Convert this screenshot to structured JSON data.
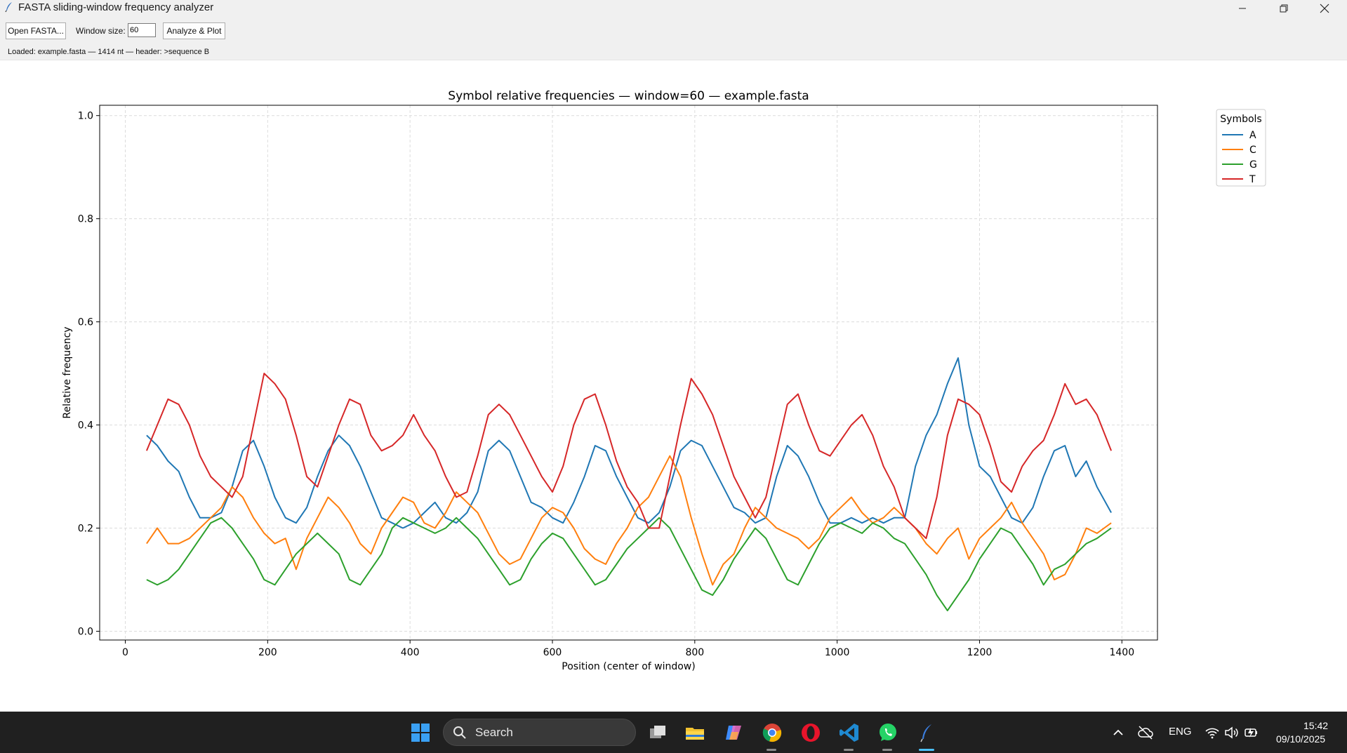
{
  "window": {
    "title": "FASTA sliding-window frequency analyzer"
  },
  "toolbar": {
    "open_label": "Open FASTA...",
    "window_size_label": "Window size:",
    "window_size_value": "60",
    "analyze_label": "Analyze & Plot",
    "status": "Loaded: example.fasta — 1414 nt — header: >sequence B"
  },
  "chart_data": {
    "type": "line",
    "title": "Symbol relative frequencies — window=60 — example.fasta",
    "xlabel": "Position (center of window)",
    "ylabel": "Relative frequency",
    "xlim": [
      -36,
      1450
    ],
    "ylim": [
      -0.017,
      1.02
    ],
    "xticks": [
      0,
      200,
      400,
      600,
      800,
      1000,
      1200,
      1400
    ],
    "yticks": [
      0.0,
      0.2,
      0.4,
      0.6,
      0.8,
      1.0
    ],
    "grid": true,
    "legend": {
      "title": "Symbols",
      "placement": "outside-top-right"
    },
    "x": [
      30,
      45,
      60,
      75,
      90,
      105,
      120,
      135,
      150,
      165,
      180,
      195,
      210,
      225,
      240,
      255,
      270,
      285,
      300,
      315,
      330,
      345,
      360,
      375,
      390,
      405,
      420,
      435,
      450,
      465,
      480,
      495,
      510,
      525,
      540,
      555,
      570,
      585,
      600,
      615,
      630,
      645,
      660,
      675,
      690,
      705,
      720,
      735,
      750,
      765,
      780,
      795,
      810,
      825,
      840,
      855,
      870,
      885,
      900,
      915,
      930,
      945,
      960,
      975,
      990,
      1005,
      1020,
      1035,
      1050,
      1065,
      1080,
      1095,
      1110,
      1125,
      1140,
      1155,
      1170,
      1185,
      1200,
      1215,
      1230,
      1245,
      1260,
      1275,
      1290,
      1305,
      1320,
      1335,
      1350,
      1365,
      1385
    ],
    "series": [
      {
        "name": "A",
        "color": "#1f77b4",
        "values": [
          0.38,
          0.36,
          0.33,
          0.31,
          0.26,
          0.22,
          0.22,
          0.23,
          0.28,
          0.35,
          0.37,
          0.32,
          0.26,
          0.22,
          0.21,
          0.24,
          0.3,
          0.35,
          0.38,
          0.36,
          0.32,
          0.27,
          0.22,
          0.21,
          0.2,
          0.21,
          0.23,
          0.25,
          0.22,
          0.21,
          0.23,
          0.27,
          0.35,
          0.37,
          0.35,
          0.3,
          0.25,
          0.24,
          0.22,
          0.21,
          0.25,
          0.3,
          0.36,
          0.35,
          0.3,
          0.26,
          0.22,
          0.21,
          0.23,
          0.28,
          0.35,
          0.37,
          0.36,
          0.32,
          0.28,
          0.24,
          0.23,
          0.21,
          0.22,
          0.3,
          0.36,
          0.34,
          0.3,
          0.25,
          0.21,
          0.21,
          0.22,
          0.21,
          0.22,
          0.21,
          0.22,
          0.22,
          0.32,
          0.38,
          0.42,
          0.48,
          0.53,
          0.4,
          0.32,
          0.3,
          0.26,
          0.22,
          0.21,
          0.24,
          0.3,
          0.35,
          0.36,
          0.3,
          0.33,
          0.28,
          0.23
        ]
      },
      {
        "name": "C",
        "color": "#ff7f0e",
        "values": [
          0.17,
          0.2,
          0.17,
          0.17,
          0.18,
          0.2,
          0.22,
          0.24,
          0.28,
          0.26,
          0.22,
          0.19,
          0.17,
          0.18,
          0.12,
          0.18,
          0.22,
          0.26,
          0.24,
          0.21,
          0.17,
          0.15,
          0.2,
          0.23,
          0.26,
          0.25,
          0.21,
          0.2,
          0.23,
          0.27,
          0.25,
          0.23,
          0.19,
          0.15,
          0.13,
          0.14,
          0.18,
          0.22,
          0.24,
          0.23,
          0.2,
          0.16,
          0.14,
          0.13,
          0.17,
          0.2,
          0.24,
          0.26,
          0.3,
          0.34,
          0.3,
          0.22,
          0.15,
          0.09,
          0.13,
          0.15,
          0.2,
          0.24,
          0.22,
          0.2,
          0.19,
          0.18,
          0.16,
          0.18,
          0.22,
          0.24,
          0.26,
          0.23,
          0.21,
          0.22,
          0.24,
          0.22,
          0.2,
          0.17,
          0.15,
          0.18,
          0.2,
          0.14,
          0.18,
          0.2,
          0.22,
          0.25,
          0.21,
          0.18,
          0.15,
          0.1,
          0.11,
          0.15,
          0.2,
          0.19,
          0.21
        ]
      },
      {
        "name": "G",
        "color": "#2ca02c",
        "values": [
          0.1,
          0.09,
          0.1,
          0.12,
          0.15,
          0.18,
          0.21,
          0.22,
          0.2,
          0.17,
          0.14,
          0.1,
          0.09,
          0.12,
          0.15,
          0.17,
          0.19,
          0.17,
          0.15,
          0.1,
          0.09,
          0.12,
          0.15,
          0.2,
          0.22,
          0.21,
          0.2,
          0.19,
          0.2,
          0.22,
          0.2,
          0.18,
          0.15,
          0.12,
          0.09,
          0.1,
          0.14,
          0.17,
          0.19,
          0.18,
          0.15,
          0.12,
          0.09,
          0.1,
          0.13,
          0.16,
          0.18,
          0.2,
          0.22,
          0.2,
          0.16,
          0.12,
          0.08,
          0.07,
          0.1,
          0.14,
          0.17,
          0.2,
          0.18,
          0.14,
          0.1,
          0.09,
          0.13,
          0.17,
          0.2,
          0.21,
          0.2,
          0.19,
          0.21,
          0.2,
          0.18,
          0.17,
          0.14,
          0.11,
          0.07,
          0.04,
          0.07,
          0.1,
          0.14,
          0.17,
          0.2,
          0.19,
          0.16,
          0.13,
          0.09,
          0.12,
          0.13,
          0.15,
          0.17,
          0.18,
          0.2
        ]
      },
      {
        "name": "T",
        "color": "#d62728",
        "values": [
          0.35,
          0.4,
          0.45,
          0.44,
          0.4,
          0.34,
          0.3,
          0.28,
          0.26,
          0.3,
          0.4,
          0.5,
          0.48,
          0.45,
          0.38,
          0.3,
          0.28,
          0.34,
          0.4,
          0.45,
          0.44,
          0.38,
          0.35,
          0.36,
          0.38,
          0.42,
          0.38,
          0.35,
          0.3,
          0.26,
          0.27,
          0.34,
          0.42,
          0.44,
          0.42,
          0.38,
          0.34,
          0.3,
          0.27,
          0.32,
          0.4,
          0.45,
          0.46,
          0.4,
          0.33,
          0.28,
          0.25,
          0.2,
          0.2,
          0.3,
          0.4,
          0.49,
          0.46,
          0.42,
          0.36,
          0.3,
          0.26,
          0.22,
          0.26,
          0.35,
          0.44,
          0.46,
          0.4,
          0.35,
          0.34,
          0.37,
          0.4,
          0.42,
          0.38,
          0.32,
          0.28,
          0.22,
          0.2,
          0.18,
          0.26,
          0.38,
          0.45,
          0.44,
          0.42,
          0.36,
          0.29,
          0.27,
          0.32,
          0.35,
          0.37,
          0.42,
          0.48,
          0.44,
          0.45,
          0.42,
          0.35
        ]
      }
    ]
  },
  "taskbar": {
    "search_placeholder": "Search",
    "language": "ENG",
    "time": "15:42",
    "date": "09/10/2025"
  }
}
